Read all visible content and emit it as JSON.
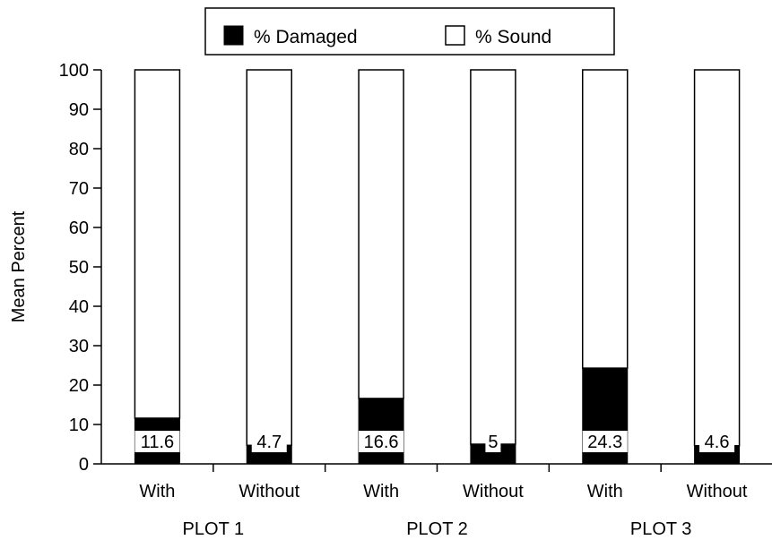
{
  "chart_data": {
    "type": "bar",
    "stacked": true,
    "categories": [
      "With",
      "Without",
      "With",
      "Without",
      "With",
      "Without"
    ],
    "groups": [
      "PLOT 1",
      "PLOT 2",
      "PLOT 3"
    ],
    "series": [
      {
        "name": "% Damaged",
        "color": "#000000",
        "values": [
          11.6,
          4.7,
          16.6,
          5,
          24.3,
          4.6
        ]
      },
      {
        "name": "% Sound",
        "color": "#ffffff",
        "values": [
          88.4,
          95.3,
          83.4,
          95,
          75.7,
          95.4
        ]
      }
    ],
    "data_labels": [
      "11.6",
      "4.7",
      "16.6",
      "5",
      "24.3",
      "4.6"
    ],
    "ylabel": "Mean Percent",
    "xlabel": "",
    "title": "",
    "ylim": [
      0,
      100
    ],
    "yticks": [
      "0",
      "10",
      "20",
      "30",
      "40",
      "50",
      "60",
      "70",
      "80",
      "90",
      "100"
    ],
    "legend_position": "top-center",
    "grid": false
  }
}
